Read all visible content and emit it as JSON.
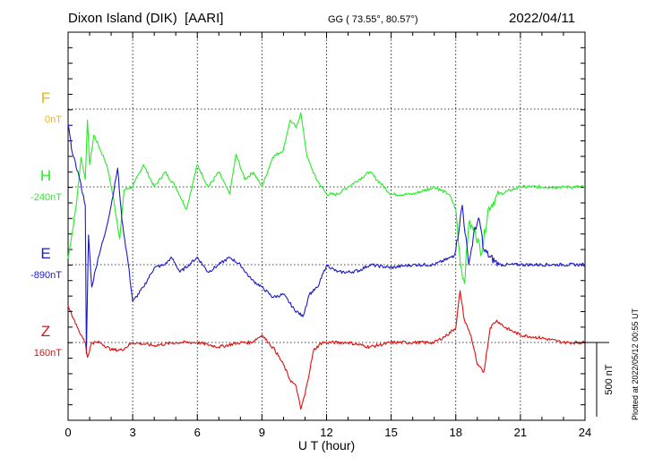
{
  "header": {
    "station": "Dixon Island (DIK)",
    "institute": "[AARI]",
    "coords": "GG ( 73.55°,  80.57°)",
    "date": "2022/04/11"
  },
  "footer": {
    "plotted": "Plotted at 2022/05/12 00:55 UT"
  },
  "colors": {
    "F": "#f2b400",
    "H": "#22ee22",
    "E": "#1a1acc",
    "Z": "#e01010"
  },
  "chart_data": {
    "type": "line",
    "xlabel": "U T (hour)",
    "xlim": [
      0,
      24
    ],
    "xticks": [
      0,
      3,
      6,
      9,
      12,
      15,
      18,
      21,
      24
    ],
    "scale_bar": "500 nT",
    "series": [
      {
        "name": "F",
        "baseline_label": "0nT",
        "x": [],
        "y": []
      },
      {
        "name": "H",
        "baseline_label": "-240nT",
        "x": [
          0,
          0.2,
          0.4,
          0.6,
          0.8,
          0.9,
          1.0,
          1.2,
          1.5,
          1.8,
          2.1,
          2.4,
          2.6,
          3.0,
          3.5,
          4.0,
          4.5,
          5.0,
          5.5,
          6.0,
          6.5,
          7.0,
          7.5,
          7.8,
          8.2,
          8.6,
          9.0,
          9.5,
          10.0,
          10.3,
          10.6,
          10.8,
          11.1,
          11.5,
          12.0,
          12.5,
          13.0,
          13.5,
          14.0,
          15.0,
          16.0,
          17.0,
          17.7,
          18.0,
          18.2,
          18.4,
          18.6,
          18.9,
          19.2,
          19.5,
          20.0,
          21.0,
          22.0,
          23.0,
          24.0
        ],
        "y": [
          -480,
          -300,
          -100,
          200,
          50,
          450,
          150,
          350,
          250,
          150,
          -70,
          -350,
          -20,
          0,
          150,
          0,
          100,
          0,
          -150,
          150,
          0,
          100,
          -50,
          220,
          50,
          100,
          0,
          200,
          250,
          450,
          400,
          500,
          200,
          60,
          -50,
          -50,
          0,
          50,
          100,
          -50,
          -50,
          0,
          -50,
          -150,
          -500,
          -650,
          -250,
          -300,
          -450,
          -150,
          -50,
          0,
          0,
          0,
          0
        ]
      },
      {
        "name": "E",
        "baseline_label": "-890nT",
        "x": [
          0,
          0.2,
          0.5,
          0.8,
          0.85,
          0.95,
          1.1,
          1.4,
          1.7,
          2.0,
          2.3,
          2.5,
          2.8,
          3.0,
          3.5,
          4.0,
          4.5,
          4.8,
          5.2,
          5.6,
          6.0,
          6.5,
          7.0,
          7.5,
          8.0,
          8.5,
          9.0,
          9.5,
          10.0,
          10.5,
          10.9,
          11.2,
          11.6,
          12.0,
          12.5,
          13.0,
          13.5,
          14.0,
          15.0,
          16.0,
          17.0,
          17.8,
          18.0,
          18.3,
          18.6,
          18.9,
          19.1,
          19.3,
          19.6,
          20.0,
          20.5,
          21.0,
          22.0,
          23.0,
          24.0
        ],
        "y": [
          950,
          750,
          600,
          400,
          -600,
          200,
          -150,
          50,
          200,
          400,
          650,
          300,
          0,
          -250,
          -150,
          -20,
          0,
          50,
          -50,
          0,
          50,
          -50,
          0,
          50,
          0,
          -100,
          -150,
          -220,
          -200,
          -300,
          -350,
          -200,
          -150,
          0,
          -50,
          -50,
          -40,
          0,
          -20,
          0,
          0,
          50,
          100,
          400,
          0,
          250,
          300,
          100,
          50,
          0,
          0,
          0,
          0,
          0,
          0
        ]
      },
      {
        "name": "Z",
        "baseline_label": "160nT",
        "x": [
          0,
          0.3,
          0.6,
          0.8,
          0.9,
          1.1,
          1.5,
          2.0,
          2.5,
          3.0,
          4.0,
          5.0,
          6.0,
          7.0,
          8.0,
          8.5,
          9.0,
          9.3,
          9.6,
          10.0,
          10.3,
          10.6,
          10.8,
          11.0,
          11.4,
          11.8,
          12.0,
          13.0,
          14.0,
          15.0,
          16.0,
          17.0,
          17.6,
          18.0,
          18.2,
          18.4,
          18.7,
          19.0,
          19.3,
          19.6,
          19.9,
          20.3,
          21.0,
          22.0,
          23.0,
          24.0
        ],
        "y": [
          250,
          150,
          50,
          0,
          -100,
          0,
          0,
          -50,
          -50,
          0,
          -20,
          0,
          0,
          -30,
          0,
          0,
          50,
          0,
          -50,
          -150,
          -250,
          -300,
          -450,
          -350,
          -50,
          0,
          0,
          0,
          -30,
          0,
          0,
          0,
          50,
          100,
          350,
          150,
          50,
          -150,
          -200,
          100,
          150,
          100,
          50,
          30,
          0,
          0
        ]
      }
    ]
  }
}
